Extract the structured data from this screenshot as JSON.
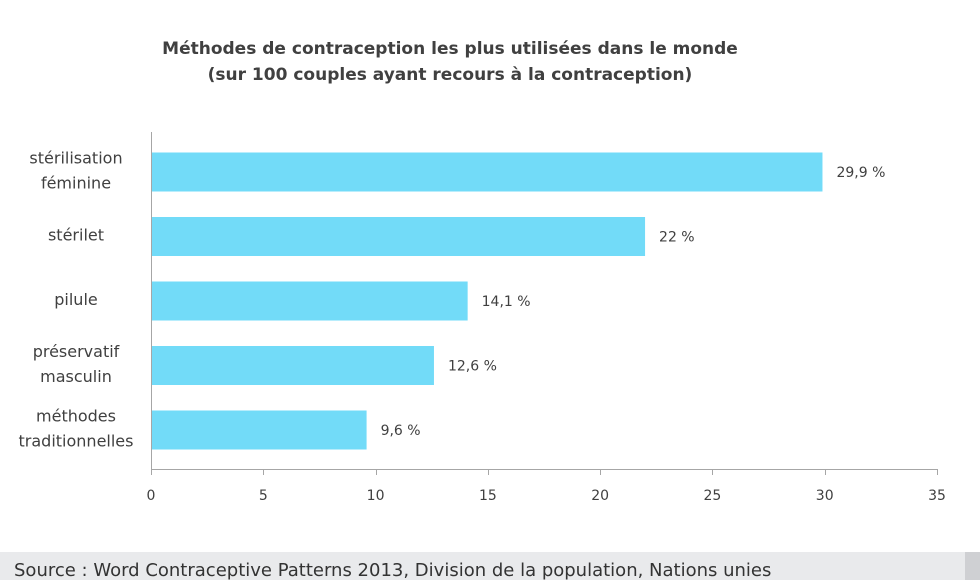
{
  "chart_data": {
    "type": "bar",
    "orientation": "horizontal",
    "title": "Méthodes de contraception les plus utilisées dans le monde",
    "subtitle": "(sur 100 couples ayant recours à la contraception)",
    "categories": [
      [
        "stérilisation",
        "féminine"
      ],
      [
        "stérilet"
      ],
      [
        "pilule"
      ],
      [
        "préservatif",
        "masculin"
      ],
      [
        "méthodes",
        "traditionnelles"
      ]
    ],
    "values": [
      29.9,
      22,
      14.1,
      12.6,
      9.6
    ],
    "value_labels": [
      "29,9 %",
      "22 %",
      "14,1 %",
      "12,6 %",
      "9,6 %"
    ],
    "xlim": [
      0,
      35
    ],
    "xticks": [
      0,
      5,
      10,
      15,
      20,
      25,
      30,
      35
    ],
    "xlabel": "",
    "ylabel": "",
    "grid": false,
    "bar_color": "#72dbf8"
  },
  "source": "Source : Word Contraceptive Patterns 2013, Division de la population, Nations unies"
}
